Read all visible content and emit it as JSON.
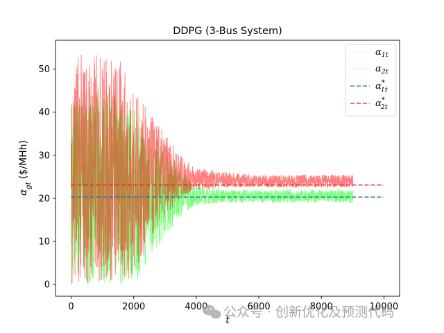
{
  "chart_data": {
    "type": "line",
    "title": "DDPG (3-Bus System)",
    "xlabel": "t",
    "ylabel": "α_gt ($/MHh)",
    "xlim": [
      -500,
      10500
    ],
    "ylim": [
      -2.7,
      56.7
    ],
    "x_ticks": [
      0,
      2000,
      4000,
      6000,
      8000,
      10000
    ],
    "y_ticks": [
      0,
      10,
      20,
      30,
      40,
      50
    ],
    "grid": false,
    "legend_position": "top-right",
    "series": [
      {
        "name": "α_1t",
        "color": "#00ff00",
        "style": "solid",
        "envelope": {
          "t": [
            0,
            1000,
            1200,
            1600,
            2000,
            2500,
            3000,
            3500,
            4000,
            5000,
            6000,
            7000,
            8000,
            9000
          ],
          "upper": [
            45,
            45,
            45,
            44,
            42,
            36,
            31,
            27,
            23,
            22,
            22,
            22,
            22,
            22
          ],
          "lower": [
            0,
            0,
            0,
            0,
            0,
            5,
            11,
            16,
            18.5,
            19,
            19,
            19,
            19,
            19
          ]
        }
      },
      {
        "name": "α_2t",
        "color": "#ff0000",
        "style": "solid",
        "envelope": {
          "t": [
            0,
            1000,
            1200,
            1600,
            2000,
            2500,
            3000,
            3500,
            4000,
            5000,
            6000,
            7000,
            8000,
            9000
          ],
          "upper": [
            54,
            54,
            54,
            52,
            45,
            40,
            35,
            30,
            27,
            26,
            25.5,
            25.5,
            25.5,
            25.5
          ],
          "lower": [
            0,
            0,
            0,
            0,
            2,
            9,
            16,
            20,
            22,
            22.5,
            22.5,
            22.5,
            22.5,
            22.5
          ]
        }
      },
      {
        "name": "α_1t^*",
        "color": "#1f77b4",
        "style": "dashed",
        "x": [
          0,
          10000
        ],
        "y": [
          20.3,
          20.3
        ]
      },
      {
        "name": "α_2t^*",
        "color": "#d62728",
        "style": "dashed",
        "x": [
          0,
          10000
        ],
        "y": [
          23.1,
          23.1
        ]
      }
    ]
  },
  "watermark": {
    "icon": "wechat-icon",
    "text": "公众号 · 创新优化及预测代码"
  }
}
